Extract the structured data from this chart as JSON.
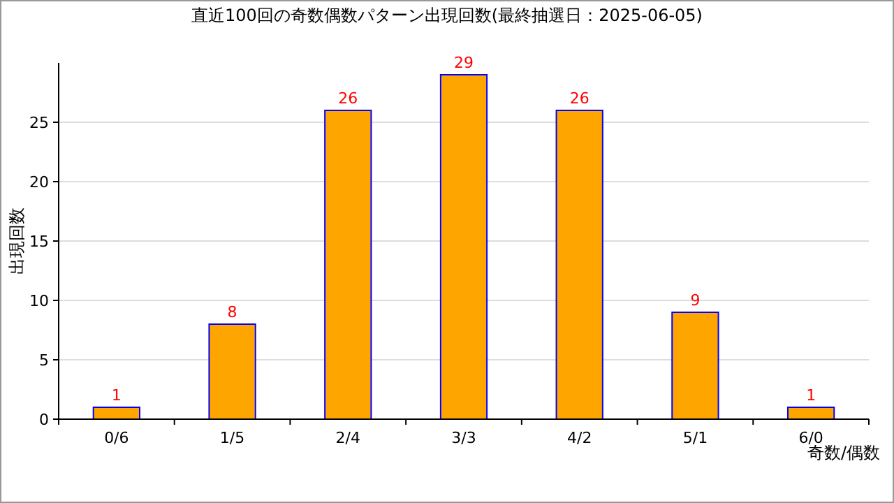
{
  "chart_data": {
    "type": "bar",
    "title": "直近100回の奇数偶数パターン出現回数(最終抽選日：2025-06-05)",
    "xlabel": "奇数/偶数",
    "ylabel": "出現回数",
    "categories": [
      "0/6",
      "1/5",
      "2/4",
      "3/3",
      "4/2",
      "5/1",
      "6/0"
    ],
    "values": [
      1,
      8,
      26,
      29,
      26,
      9,
      1
    ],
    "color": "#ffa500",
    "ylim": [
      0,
      30
    ],
    "yticks": [
      0,
      5,
      10,
      15,
      20,
      25
    ],
    "grid": "y",
    "data_labels": true
  }
}
